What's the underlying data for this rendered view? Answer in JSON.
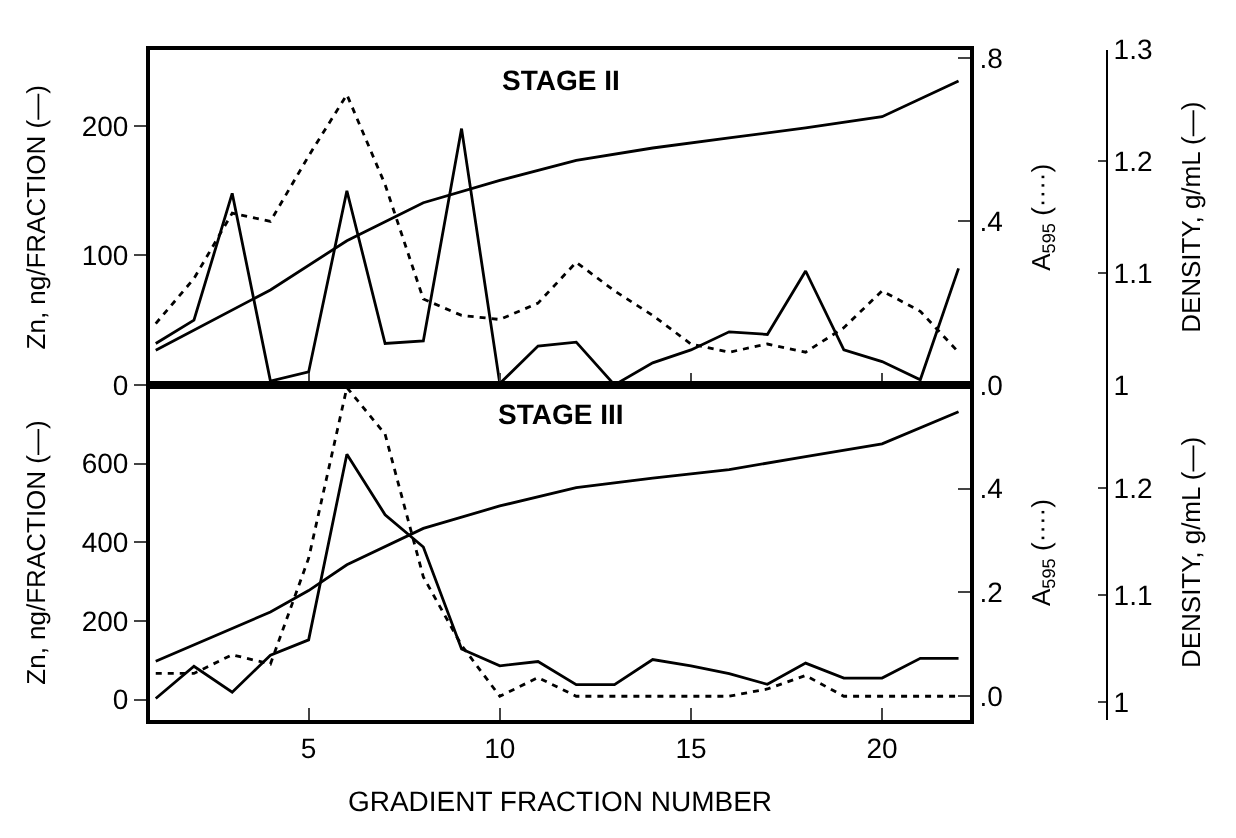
{
  "chart_data": [
    {
      "type": "line",
      "title": "STAGE II",
      "ylabel": "Zn, ng/FRACTION (—)",
      "y2label": "A$_{595}$ (····)",
      "y3label": "DENSITY, g/mL (—)",
      "x": [
        1,
        2,
        3,
        4,
        5,
        6,
        7,
        8,
        9,
        10,
        11,
        12,
        13,
        14,
        15,
        16,
        17,
        18,
        19,
        20,
        21,
        22
      ],
      "xlim": [
        0.85,
        22.3
      ],
      "xticks": [
        5,
        10,
        15,
        20
      ],
      "tick_labels": "y",
      "ylim": [
        0,
        259
      ],
      "yticks": [
        0,
        100,
        200
      ],
      "y2lim": [
        0,
        0.82
      ],
      "y2ticks": [
        {
          "value": 0,
          "label": ".0"
        },
        {
          "value": 0.4,
          "label": ".4"
        },
        {
          "value": 0.8,
          "label": ".8"
        }
      ],
      "y3lim": [
        1.0,
        1.3
      ],
      "y3ticks": [
        1,
        1.1,
        1.2,
        1.3
      ],
      "grid": false,
      "marker": "none",
      "series": [
        {
          "color": "#000000",
          "line_style": "solid",
          "values": [
            32,
            50,
            148,
            3,
            10,
            150,
            32,
            34,
            198,
            1,
            30,
            33,
            0,
            17,
            27,
            41,
            39,
            88,
            27,
            18,
            4,
            90
          ]
        },
        {
          "color": "#000000",
          "line_style": "dotted",
          "axis": "y2",
          "values": [
            0.15,
            0.26,
            0.42,
            0.4,
            0.56,
            0.71,
            0.49,
            0.21,
            0.17,
            0.16,
            0.2,
            0.3,
            0.23,
            0.17,
            0.1,
            0.08,
            0.1,
            0.08,
            0.14,
            0.23,
            0.18,
            0.08
          ]
        },
        {
          "color": "#000000",
          "line_style": "solid",
          "axis": "y3",
          "x": [
            1,
            4,
            6,
            8,
            10,
            12,
            14,
            16,
            18,
            20,
            22
          ],
          "values": [
            1.031,
            1.085,
            1.129,
            1.163,
            1.183,
            1.201,
            1.212,
            1.221,
            1.23,
            1.24,
            1.272
          ]
        }
      ]
    },
    {
      "type": "line",
      "title": "STAGE III",
      "xlabel": "GRADIENT FRACTION NUMBER",
      "ylabel": "Zn, ng/FRACTION (—)",
      "y2label": "A$_{595}$ (····)",
      "y3label": "DENSITY, g/mL (—)",
      "x": [
        1,
        2,
        3,
        4,
        5,
        6,
        7,
        8,
        9,
        10,
        11,
        12,
        13,
        14,
        15,
        16,
        17,
        18,
        19,
        20,
        21,
        22
      ],
      "xlim": [
        0.85,
        22.3
      ],
      "xticks": [
        5,
        10,
        15,
        20
      ],
      "ylim": [
        -52,
        800
      ],
      "yticks": [
        0,
        200,
        400,
        600
      ],
      "y2lim": [
        -0.046,
        0.6
      ],
      "y2ticks": [
        {
          "value": 0,
          "label": ".0"
        },
        {
          "value": 0.2,
          "label": ".2"
        },
        {
          "value": 0.4,
          "label": ".4"
        }
      ],
      "y3lim": [
        0.983,
        1.296
      ],
      "y3ticks": [
        1,
        1.1,
        1.2
      ],
      "grid": false,
      "marker": "none",
      "series": [
        {
          "color": "#000000",
          "line_style": "solid",
          "values": [
            3,
            85,
            19,
            113,
            152,
            624,
            470,
            388,
            129,
            86,
            97,
            38,
            38,
            102,
            86,
            66,
            39,
            93,
            55,
            55,
            105,
            105
          ]
        },
        {
          "color": "#000000",
          "line_style": "dotted",
          "axis": "y2",
          "values": [
            0.044,
            0.044,
            0.08,
            0.062,
            0.266,
            0.595,
            0.505,
            0.23,
            0.098,
            0.0,
            0.036,
            0.0,
            0.0,
            0.0,
            0.0,
            0.0,
            0.014,
            0.04,
            0.0,
            0.0,
            0.0,
            0.0
          ]
        },
        {
          "color": "#000000",
          "line_style": "solid",
          "axis": "y3",
          "x": [
            1,
            4,
            5,
            6,
            8,
            10,
            12,
            14,
            16,
            18,
            20,
            22
          ],
          "values": [
            1.038,
            1.084,
            1.104,
            1.128,
            1.162,
            1.183,
            1.2,
            1.209,
            1.217,
            1.229,
            1.241,
            1.271
          ]
        }
      ]
    }
  ]
}
